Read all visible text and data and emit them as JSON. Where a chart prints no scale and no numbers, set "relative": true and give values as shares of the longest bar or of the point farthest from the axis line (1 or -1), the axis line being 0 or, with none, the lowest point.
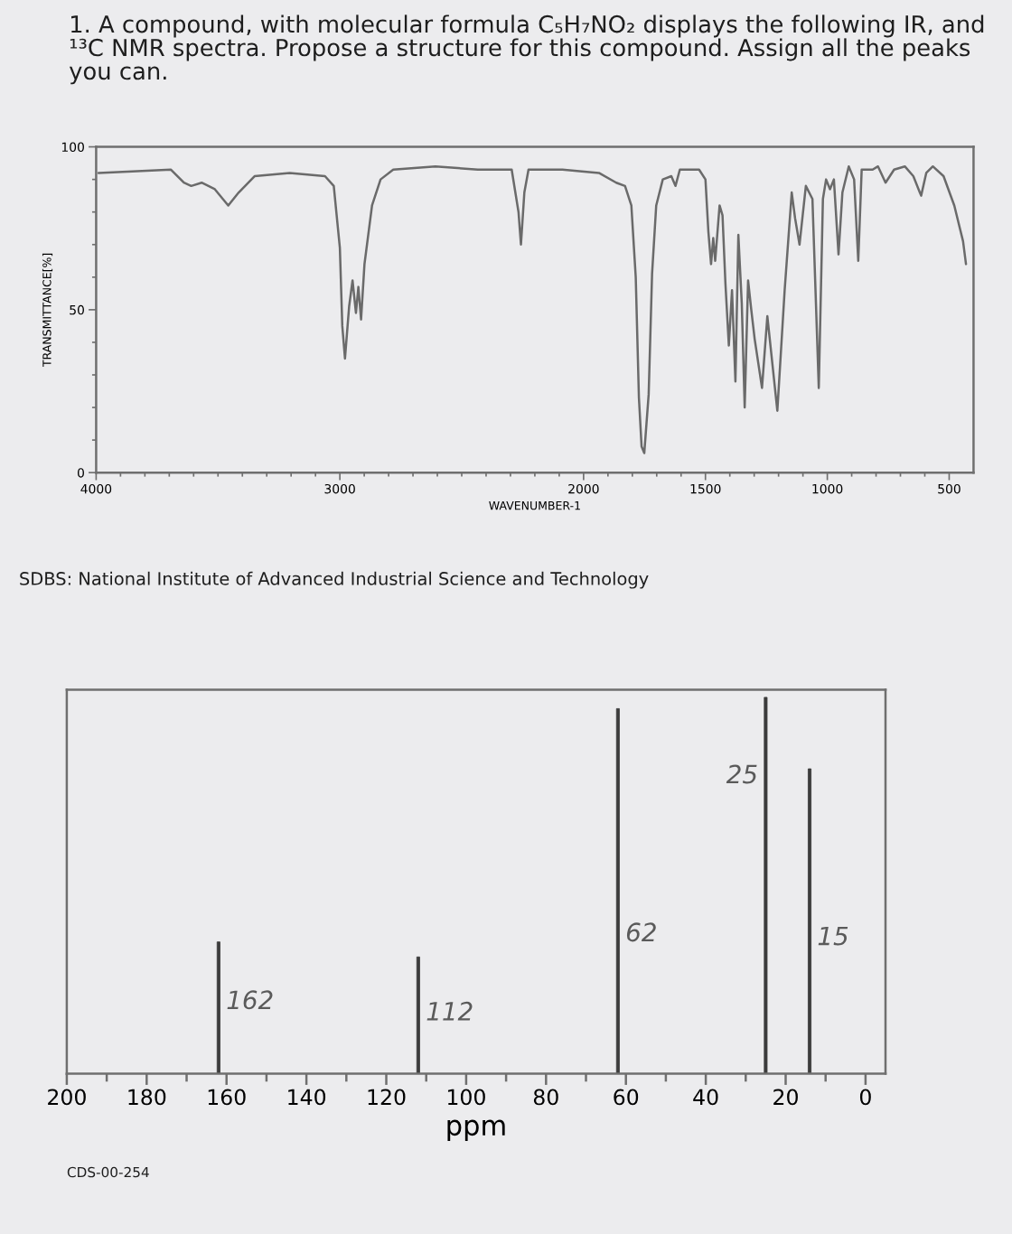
{
  "chart_data": [
    {
      "type": "line",
      "title": "1. A compound, with molecular formula C₅H₇NO₂ displays the following IR, and ¹³C NMR spectra. Propose a structure for this compound. Assign all the peaks you can.",
      "xlabel": "WAVENUMBER-1",
      "ylabel": "TRANSMITTANCE[%]",
      "annotations": [
        "SDBS: National Institute of Advanced Industrial Science and Technology"
      ],
      "color": "#6a6a6a",
      "x": [
        3990,
        3693,
        3640,
        3610,
        3567,
        3513,
        3458,
        3415,
        3350,
        3206,
        3061,
        3025,
        3000,
        2990,
        2979,
        2962,
        2948,
        2934,
        2924,
        2913,
        2899,
        2868,
        2833,
        2781,
        2608,
        2434,
        2295,
        2267,
        2257,
        2243,
        2226,
        2087,
        1937,
        1866,
        1830,
        1804,
        1786,
        1773,
        1762,
        1751,
        1733,
        1719,
        1702,
        1675,
        1640,
        1623,
        1605,
        1526,
        1500,
        1488,
        1477,
        1468,
        1460,
        1442,
        1430,
        1418,
        1404,
        1391,
        1377,
        1365,
        1351,
        1339,
        1325,
        1312,
        1298,
        1268,
        1246,
        1205,
        1175,
        1146,
        1132,
        1114,
        1088,
        1061,
        1035,
        1018,
        1005,
        989,
        973,
        954,
        938,
        912,
        890,
        873,
        859,
        814,
        792,
        761,
        726,
        682,
        647,
        615,
        594,
        567,
        523,
        479,
        443,
        431
      ],
      "values": [
        92,
        93,
        89,
        88,
        89,
        87,
        82,
        86,
        91,
        92,
        91,
        88,
        69,
        45,
        35,
        51,
        59,
        49,
        57,
        47,
        64,
        82,
        90,
        93,
        94,
        93,
        93,
        80,
        70,
        86,
        93,
        93,
        92,
        89,
        88,
        82,
        60,
        23,
        8,
        6,
        24,
        61,
        82,
        90,
        91,
        88,
        93,
        93,
        90,
        74,
        64,
        72,
        65,
        82,
        79,
        58,
        39,
        56,
        28,
        73,
        52,
        20,
        59,
        50,
        41,
        26,
        48,
        19,
        56,
        86,
        78,
        70,
        88,
        84,
        26,
        84,
        90,
        87,
        90,
        67,
        86,
        94,
        90,
        65,
        93,
        93,
        94,
        89,
        93,
        94,
        91,
        85,
        92,
        94,
        91,
        82,
        71,
        64
      ],
      "xlim": [
        4000,
        400
      ],
      "xticks": [
        4000,
        {
          "value": 3900,
          "label": null
        },
        {
          "value": 3800,
          "label": null
        },
        {
          "value": 3700,
          "label": null
        },
        {
          "value": 3600,
          "label": null
        },
        {
          "value": 3500,
          "label": null
        },
        {
          "value": 3400,
          "label": null
        },
        {
          "value": 3300,
          "label": null
        },
        {
          "value": 3200,
          "label": null
        },
        {
          "value": 3100,
          "label": null
        },
        3000,
        {
          "value": 2900,
          "label": null
        },
        {
          "value": 2800,
          "label": null
        },
        {
          "value": 2700,
          "label": null
        },
        {
          "value": 2600,
          "label": null
        },
        {
          "value": 2500,
          "label": null
        },
        {
          "value": 2400,
          "label": null
        },
        {
          "value": 2300,
          "label": null
        },
        {
          "value": 2200,
          "label": null
        },
        {
          "value": 2100,
          "label": null
        },
        2000,
        {
          "value": 1900,
          "label": null
        },
        {
          "value": 1800,
          "label": null
        },
        {
          "value": 1700,
          "label": null
        },
        {
          "value": 1600,
          "label": null
        },
        1500,
        {
          "value": 1400,
          "label": null
        },
        {
          "value": 1300,
          "label": null
        },
        {
          "value": 1200,
          "label": null
        },
        {
          "value": 1100,
          "label": null
        },
        1000,
        {
          "value": 900,
          "label": null
        },
        {
          "value": 800,
          "label": null
        },
        {
          "value": 700,
          "label": null
        },
        {
          "value": 600,
          "label": null
        },
        500
      ],
      "ylim": [
        0,
        100
      ],
      "yticks": [
        0,
        {
          "value": 10,
          "label": null
        },
        {
          "value": 20,
          "label": null
        },
        {
          "value": 30,
          "label": null
        },
        {
          "value": 40,
          "label": null
        },
        50,
        {
          "value": 60,
          "label": null
        },
        {
          "value": 70,
          "label": null
        },
        {
          "value": 80,
          "label": null
        },
        {
          "value": 90,
          "label": null
        },
        100
      ]
    },
    {
      "type": "bar",
      "relative": true,
      "xlabel": "ppm",
      "color": "#3c3c3c",
      "x": [
        162,
        112,
        62,
        25,
        14
      ],
      "values": [
        0.35,
        0.31,
        0.97,
        1,
        0.81
      ],
      "xlim": [
        200,
        -5
      ],
      "xticks": [
        200,
        {
          "value": 190,
          "label": null
        },
        180,
        {
          "value": 170,
          "label": null
        },
        160,
        {
          "value": 150,
          "label": null
        },
        140,
        {
          "value": 130,
          "label": null
        },
        120,
        {
          "value": 110,
          "label": null
        },
        100,
        {
          "value": 90,
          "label": null
        },
        80,
        {
          "value": 70,
          "label": null
        },
        60,
        {
          "value": 50,
          "label": null
        },
        40,
        {
          "value": 30,
          "label": null
        },
        20,
        {
          "value": 10,
          "label": null
        },
        0
      ],
      "annotations": [
        {
          "text": "162",
          "x": 162,
          "y": 0.19
        },
        {
          "text": "112",
          "x": 112,
          "y": 0.16
        },
        {
          "text": "62",
          "x": 62,
          "y": 0.37
        },
        {
          "text": "25",
          "x": 25,
          "y": 0.79
        },
        {
          "text": "15",
          "x": 14,
          "y": 0.36
        },
        "CDS-00-254"
      ]
    }
  ]
}
